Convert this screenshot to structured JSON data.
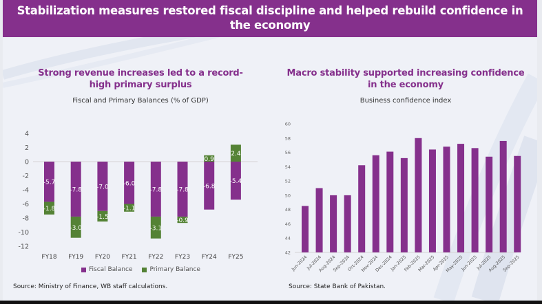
{
  "banner": {
    "title_line1": "Stabilization measures restored fiscal discipline and helped rebuild confidence in",
    "title_line2": "the economy"
  },
  "colors": {
    "banner": "#85308c",
    "fiscal": "#85308c",
    "primary": "#548235",
    "title_text": "#85308c"
  },
  "left_panel": {
    "title_line1": "Strong revenue increases led to a record-",
    "title_line2": "high primary surplus",
    "subtitle": "Fiscal and Primary Balances (% of GDP)",
    "legend": [
      "Fiscal Balance",
      "Primary Balance"
    ],
    "source": "Source: Ministry of Finance, WB staff calculations."
  },
  "right_panel": {
    "title_line1": "Macro stability supported increasing confidence",
    "title_line2": "in the economy",
    "subtitle": "Business confidence index",
    "source": "Source: State Bank of Pakistan."
  },
  "chart_data": [
    {
      "type": "bar",
      "stacked": true,
      "title": "Fiscal and Primary Balances (% of GDP)",
      "categories": [
        "FY18",
        "FY19",
        "FY20",
        "FY21",
        "FY22",
        "FY23",
        "FY24",
        "FY25"
      ],
      "series": [
        {
          "name": "Fiscal Balance",
          "values": [
            -5.7,
            -7.8,
            -7.0,
            -6.0,
            -7.8,
            -7.8,
            -6.8,
            -5.4
          ],
          "labels": [
            "-5.7",
            "-7.8",
            "-7.0",
            "-6.0",
            "-7.8",
            "-7.8",
            "-6.8",
            "-5.4"
          ]
        },
        {
          "name": "Primary Balance",
          "values": [
            -1.8,
            -3.0,
            -1.5,
            -1.1,
            -3.1,
            -0.9,
            0.9,
            2.4
          ],
          "labels": [
            "-1.8",
            "-3.0",
            "-1.5",
            "-1.1",
            "-3.1",
            "-0.9",
            "0.9",
            "2.4"
          ]
        }
      ],
      "ylim": [
        -12,
        4
      ],
      "yticks": [
        "4",
        "2",
        "0",
        "-2",
        "-4",
        "-6",
        "-8",
        "-10",
        "-12"
      ],
      "ytick_values": [
        4,
        2,
        0,
        -2,
        -4,
        -6,
        -8,
        -10,
        -12
      ],
      "legend_position": "bottom",
      "grid": false
    },
    {
      "type": "bar",
      "title": "Business confidence index",
      "categories": [
        "Jun-2024",
        "Jul-2024",
        "Aug-2024",
        "Sep-2024",
        "Oct-2024",
        "Nov-2024",
        "Dec-2024",
        "Jan-2025",
        "Feb-2025",
        "Mar-2025",
        "Apr-2025",
        "May-2025",
        "Jun-2025",
        "Jul-2025",
        "Aug-2025",
        "Sep-2025"
      ],
      "values": [
        48.5,
        51.0,
        50.0,
        50.0,
        54.2,
        55.6,
        56.1,
        55.2,
        58.0,
        56.4,
        56.8,
        57.2,
        56.6,
        55.4,
        57.6,
        55.5
      ],
      "ylim": [
        42,
        60
      ],
      "yticks": [
        "60",
        "58",
        "56",
        "54",
        "52",
        "50",
        "48",
        "46",
        "44",
        "42"
      ],
      "ytick_values": [
        60,
        58,
        56,
        54,
        52,
        50,
        48,
        46,
        44,
        42
      ],
      "grid": false
    }
  ]
}
